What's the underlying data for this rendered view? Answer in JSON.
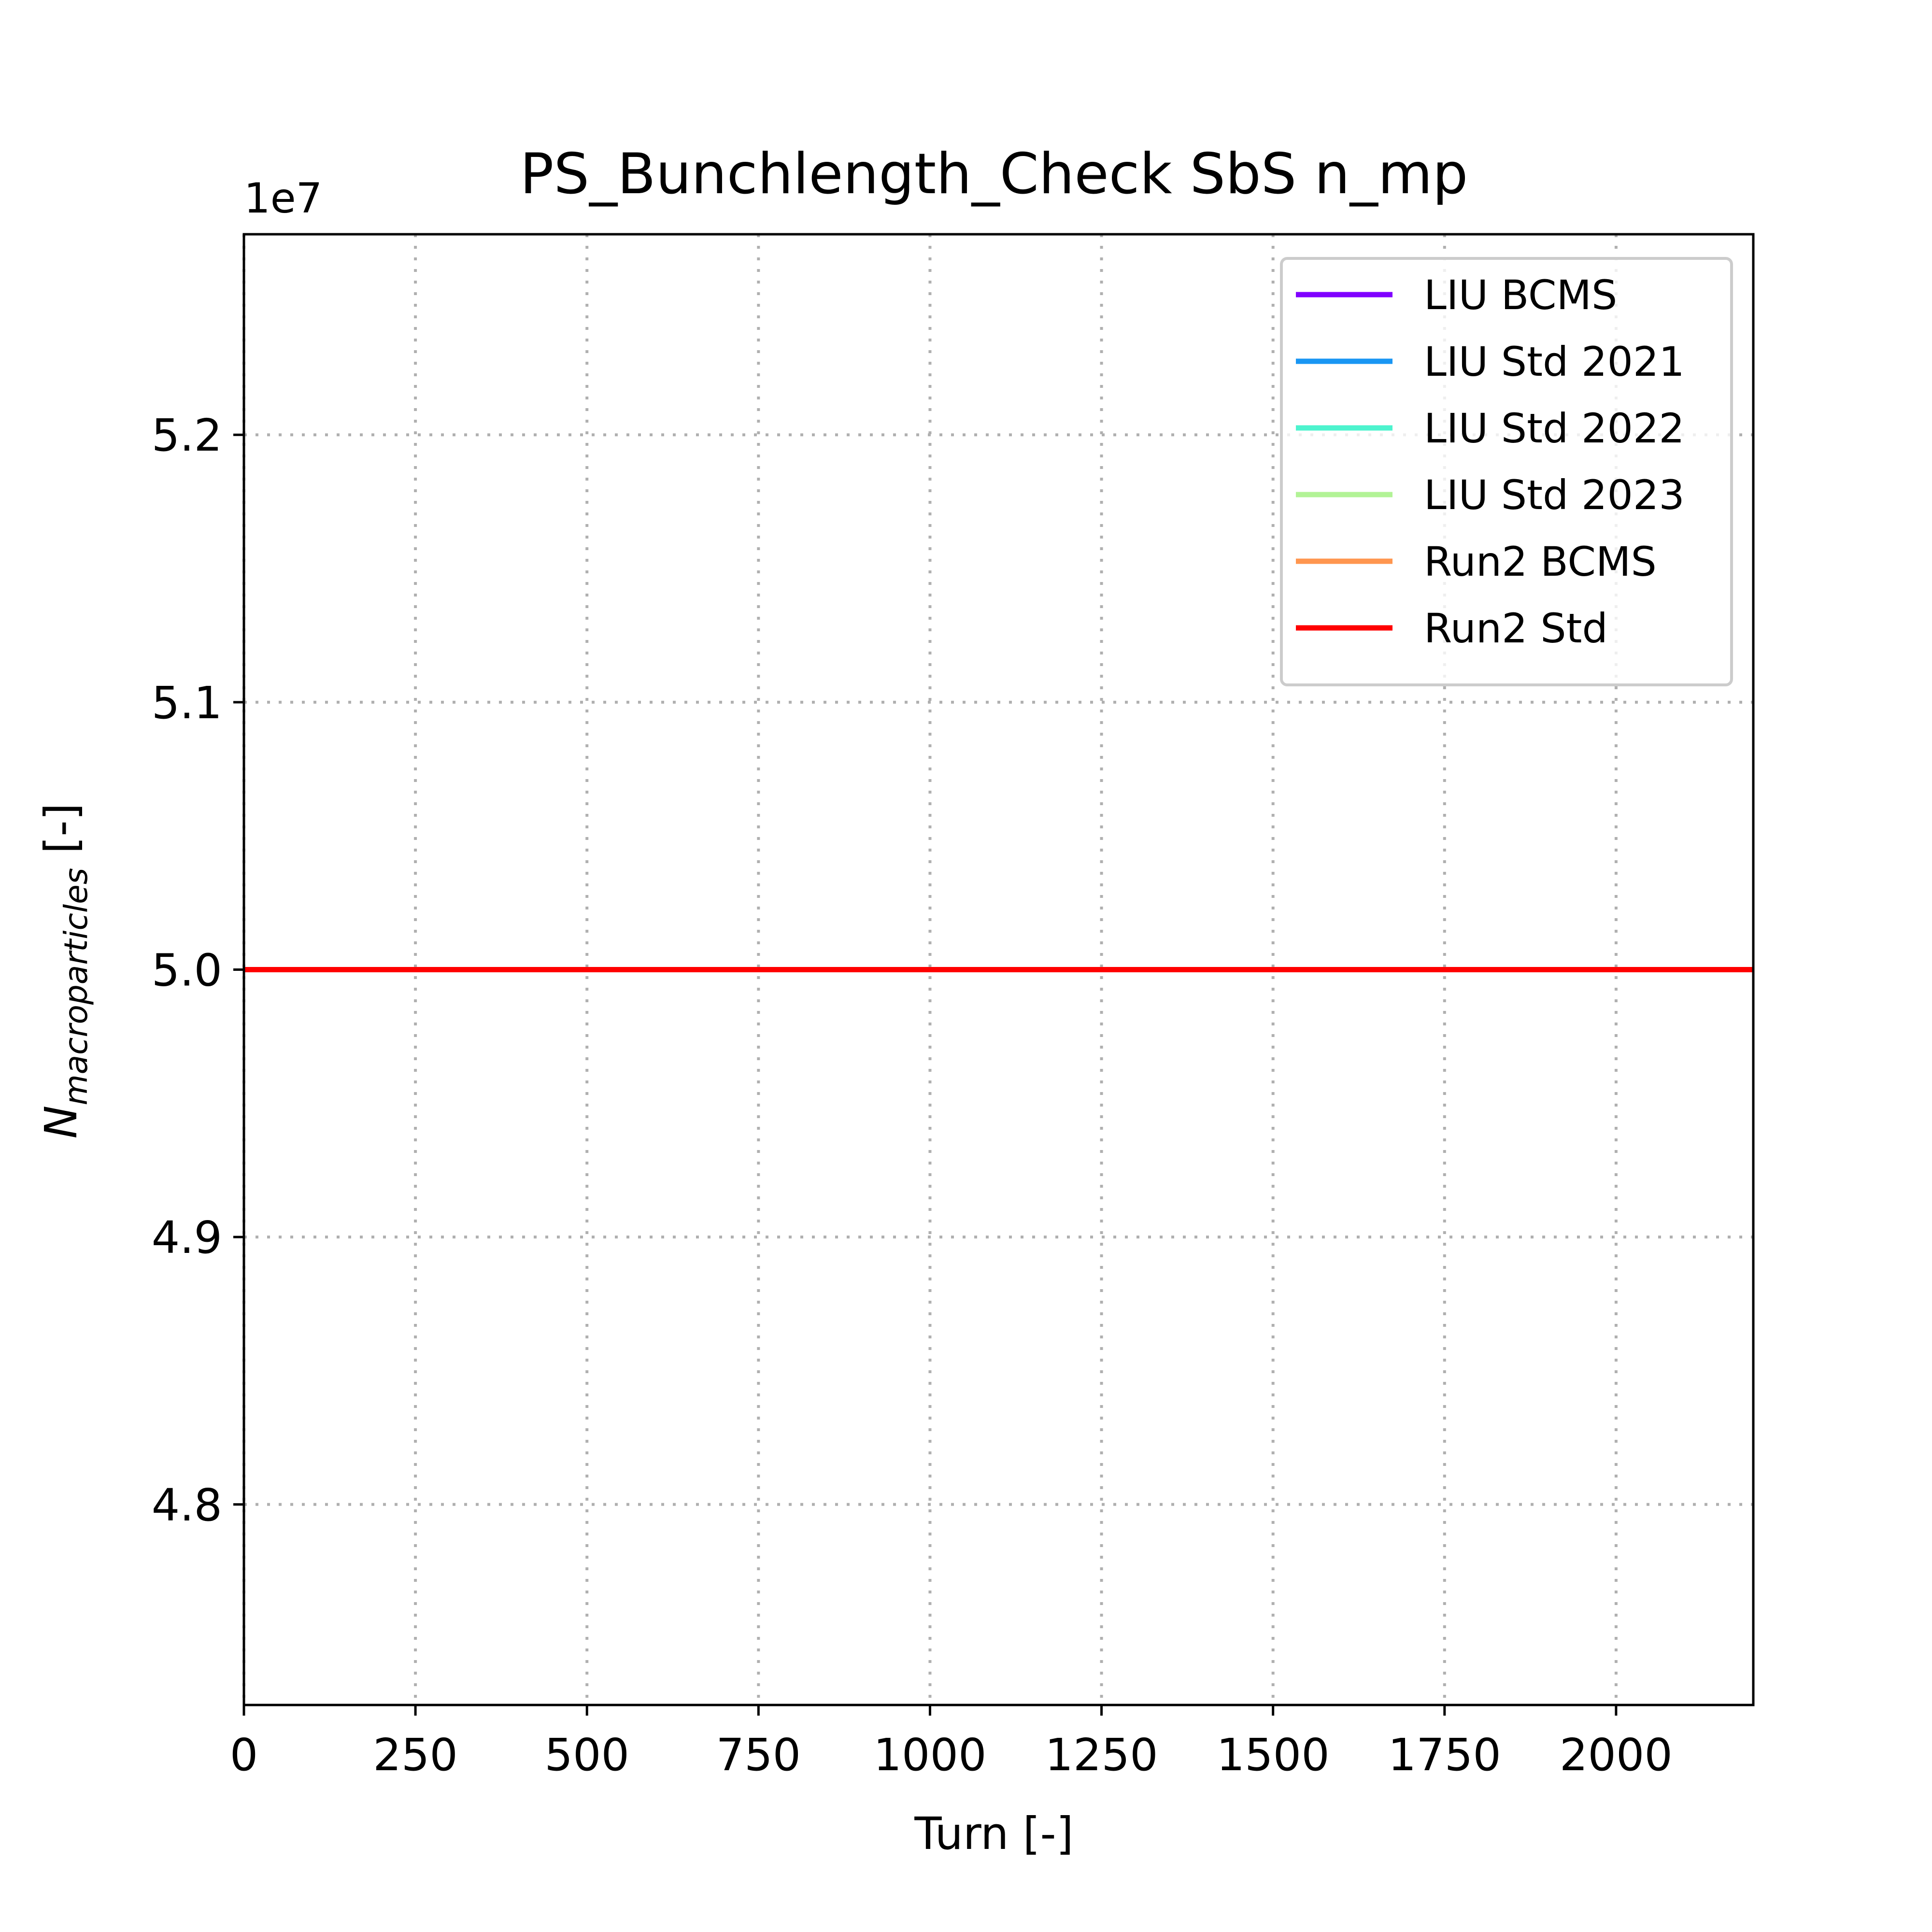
{
  "chart_data": {
    "type": "line",
    "title": "PS_Bunchlength_Check SbS n_mp",
    "xlabel": "Turn [-]",
    "ylabel_main": "N",
    "ylabel_sub": "macroparticles",
    "ylabel_suffix": " [-]",
    "y_offset_label": "1e7",
    "xlim": [
      0,
      2200
    ],
    "ylim": [
      4.725,
      5.275
    ],
    "x_ticks": [
      0,
      250,
      500,
      750,
      1000,
      1250,
      1500,
      1750,
      2000
    ],
    "x_tick_labels": [
      "0",
      "250",
      "500",
      "750",
      "1000",
      "1250",
      "1500",
      "1750",
      "2000"
    ],
    "y_ticks": [
      4.8,
      4.9,
      5.0,
      5.1,
      5.2
    ],
    "y_tick_labels": [
      "4.8",
      "4.9",
      "5.0",
      "5.1",
      "5.2"
    ],
    "grid": true,
    "legend_position": "top-right",
    "series": [
      {
        "name": "LIU BCMS",
        "color": "#8000ff",
        "x": [
          0,
          2200
        ],
        "y": [
          5.0,
          5.0
        ]
      },
      {
        "name": "LIU Std 2021",
        "color": "#1996f3",
        "x": [
          0,
          2200
        ],
        "y": [
          5.0,
          5.0
        ]
      },
      {
        "name": "LIU Std 2022",
        "color": "#4df3ce",
        "x": [
          0,
          2200
        ],
        "y": [
          5.0,
          5.0
        ]
      },
      {
        "name": "LIU Std 2023",
        "color": "#b2f396",
        "x": [
          0,
          2200
        ],
        "y": [
          5.0,
          5.0
        ]
      },
      {
        "name": "Run2 BCMS",
        "color": "#ff964f",
        "x": [
          0,
          2200
        ],
        "y": [
          5.0,
          5.0
        ]
      },
      {
        "name": "Run2 Std",
        "color": "#ff0000",
        "x": [
          0,
          2200
        ],
        "y": [
          5.0,
          5.0
        ]
      }
    ]
  }
}
